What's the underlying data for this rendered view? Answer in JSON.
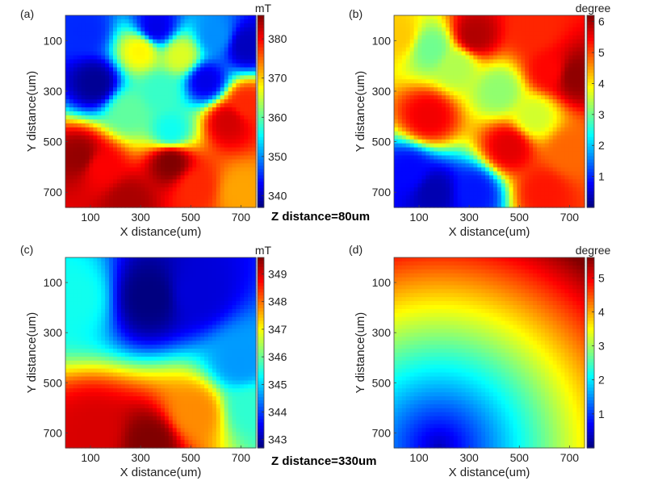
{
  "figure": {
    "section_labels": [
      "Z distance=80um",
      "Z distance=330um"
    ]
  },
  "chart_data": [
    {
      "type": "heatmap",
      "panel_label": "(a)",
      "xlabel": "X distance(um)",
      "ylabel": "Y distance(um)",
      "xticks": [
        100,
        300,
        500,
        700
      ],
      "yticks": [
        100,
        300,
        500,
        700
      ],
      "xlim": [
        0,
        760
      ],
      "ylim": [
        0,
        760
      ],
      "colorbar": {
        "unit": "mT",
        "ticks": [
          340,
          350,
          360,
          370,
          380
        ],
        "range": [
          337,
          386
        ]
      },
      "colormap": "jet",
      "blobs": [
        {
          "x": 80,
          "y": 60,
          "value": 345
        },
        {
          "x": 120,
          "y": 270,
          "value": 338
        },
        {
          "x": 360,
          "y": 50,
          "value": 342
        },
        {
          "x": 600,
          "y": 80,
          "value": 350
        },
        {
          "x": 720,
          "y": 120,
          "value": 340
        },
        {
          "x": 560,
          "y": 260,
          "value": 342
        },
        {
          "x": 300,
          "y": 140,
          "value": 368
        },
        {
          "x": 380,
          "y": 300,
          "value": 358
        },
        {
          "x": 460,
          "y": 160,
          "value": 366
        },
        {
          "x": 250,
          "y": 380,
          "value": 360
        },
        {
          "x": 60,
          "y": 560,
          "value": 385
        },
        {
          "x": 140,
          "y": 600,
          "value": 380
        },
        {
          "x": 650,
          "y": 420,
          "value": 382
        },
        {
          "x": 720,
          "y": 350,
          "value": 378
        },
        {
          "x": 420,
          "y": 580,
          "value": 386
        },
        {
          "x": 250,
          "y": 740,
          "value": 384
        },
        {
          "x": 520,
          "y": 680,
          "value": 378
        },
        {
          "x": 700,
          "y": 700,
          "value": 372
        },
        {
          "x": 420,
          "y": 460,
          "value": 356
        }
      ]
    },
    {
      "type": "heatmap",
      "panel_label": "(b)",
      "xlabel": "X distance(um)",
      "ylabel": "Y distance(um)",
      "xticks": [
        100,
        300,
        500,
        700
      ],
      "yticks": [
        100,
        300,
        500,
        700
      ],
      "xlim": [
        0,
        760
      ],
      "ylim": [
        0,
        760
      ],
      "colorbar": {
        "unit": "degree",
        "ticks": [
          1,
          2,
          3,
          4,
          5,
          6
        ],
        "range": [
          0,
          6.2
        ]
      },
      "colormap": "jet",
      "blobs": [
        {
          "x": 320,
          "y": 80,
          "value": 5.9
        },
        {
          "x": 560,
          "y": 60,
          "value": 5.2
        },
        {
          "x": 720,
          "y": 240,
          "value": 6.1
        },
        {
          "x": 620,
          "y": 220,
          "value": 5.4
        },
        {
          "x": 140,
          "y": 400,
          "value": 5.5
        },
        {
          "x": 460,
          "y": 520,
          "value": 5.6
        },
        {
          "x": 700,
          "y": 540,
          "value": 4.8
        },
        {
          "x": 600,
          "y": 700,
          "value": 5.3
        },
        {
          "x": 420,
          "y": 300,
          "value": 3.2
        },
        {
          "x": 250,
          "y": 200,
          "value": 3.4
        },
        {
          "x": 150,
          "y": 130,
          "value": 3.0
        },
        {
          "x": 560,
          "y": 400,
          "value": 3.6
        },
        {
          "x": 160,
          "y": 700,
          "value": 0.3
        },
        {
          "x": 60,
          "y": 620,
          "value": 0.8
        },
        {
          "x": 320,
          "y": 700,
          "value": 0.9
        },
        {
          "x": 20,
          "y": 80,
          "value": 4.2
        }
      ]
    },
    {
      "type": "heatmap",
      "panel_label": "(c)",
      "xlabel": "X distance(um)",
      "ylabel": "Y distance(um)",
      "xticks": [
        100,
        300,
        500,
        700
      ],
      "yticks": [
        100,
        300,
        500,
        700
      ],
      "xlim": [
        0,
        760
      ],
      "ylim": [
        0,
        760
      ],
      "colorbar": {
        "unit": "mT",
        "ticks": [
          343,
          344,
          345,
          346,
          347,
          348,
          349
        ],
        "range": [
          342.7,
          349.6
        ]
      },
      "colormap": "jet",
      "blobs": [
        {
          "x": 340,
          "y": 160,
          "value": 342.7
        },
        {
          "x": 520,
          "y": 140,
          "value": 343.3
        },
        {
          "x": 340,
          "y": 740,
          "value": 349.6
        },
        {
          "x": 120,
          "y": 700,
          "value": 349.0
        },
        {
          "x": 520,
          "y": 620,
          "value": 347.8
        },
        {
          "x": 740,
          "y": 600,
          "value": 345.6
        },
        {
          "x": 40,
          "y": 160,
          "value": 345.4
        },
        {
          "x": 700,
          "y": 420,
          "value": 344.6
        }
      ]
    },
    {
      "type": "heatmap",
      "panel_label": "(d)",
      "xlabel": "X distance(um)",
      "ylabel": "Y distance(um)",
      "xticks": [
        100,
        300,
        500,
        700
      ],
      "yticks": [
        100,
        300,
        500,
        700
      ],
      "xlim": [
        0,
        760
      ],
      "ylim": [
        0,
        760
      ],
      "colorbar": {
        "unit": "degree",
        "ticks": [
          1,
          2,
          3,
          4,
          5
        ],
        "range": [
          0,
          5.6
        ]
      },
      "colormap": "jet",
      "radial": {
        "center": [
          180,
          760
        ],
        "value_at_center": 0.3,
        "value_per_um": 0.0057,
        "max": 5.6
      }
    }
  ]
}
